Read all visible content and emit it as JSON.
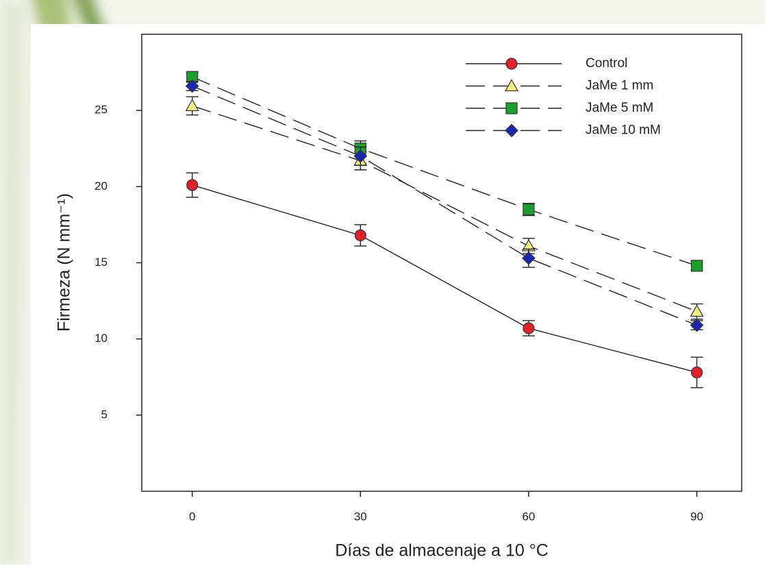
{
  "chart_data": {
    "type": "line",
    "x_label": "Días de almacenaje a 10 °C",
    "y_label": "Firmeza (N mm⁻¹)",
    "x": [
      0,
      30,
      60,
      90
    ],
    "xlim": [
      -9,
      98
    ],
    "xticks": [
      0,
      30,
      60,
      90
    ],
    "ylim": [
      0,
      30
    ],
    "yticks": [
      5,
      10,
      15,
      20,
      25
    ],
    "legend": "upper right",
    "series": [
      {
        "name": "Control",
        "color": "#e0202a",
        "marker": "circle",
        "dashed": false,
        "values": [
          20.1,
          16.8,
          10.7,
          7.8
        ],
        "errors": [
          0.8,
          0.7,
          0.5,
          1.0
        ]
      },
      {
        "name": "JaMe 1 mm",
        "color": "#f4ef80",
        "marker": "triangle",
        "dashed": true,
        "values": [
          25.3,
          21.7,
          16.1,
          11.8
        ],
        "errors": [
          0.6,
          0.6,
          0.5,
          0.5
        ]
      },
      {
        "name": "JaMe 5 mM",
        "color": "#1c9e2c",
        "marker": "square",
        "dashed": true,
        "values": [
          27.2,
          22.5,
          18.5,
          14.8
        ],
        "errors": [
          0.3,
          0.5,
          0.4,
          0.3
        ]
      },
      {
        "name": "JaMe 10 mM",
        "color": "#1a28b0",
        "marker": "diamond",
        "dashed": true,
        "values": [
          26.6,
          22.0,
          15.3,
          10.9
        ],
        "errors": [
          0.3,
          0.6,
          0.6,
          0.3
        ]
      }
    ]
  }
}
